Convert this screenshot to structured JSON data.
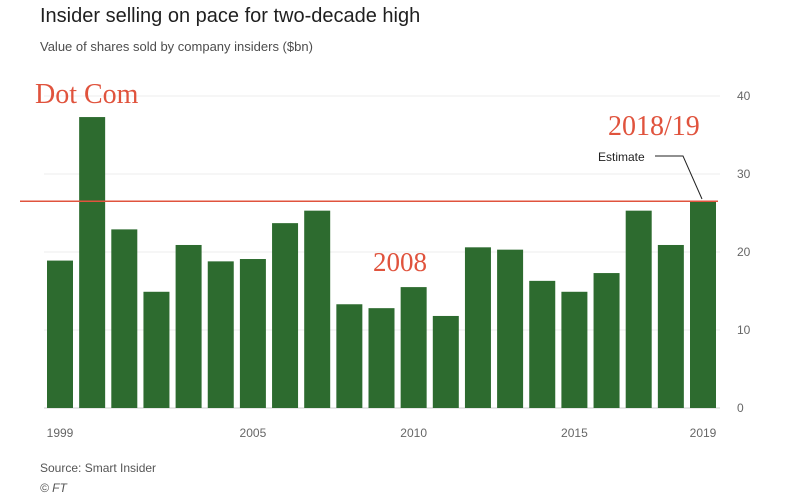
{
  "colors": {
    "bar": "#2d6b2f",
    "annotation": "#e0533d",
    "reference_line": "#e0533d",
    "grid": "#ececec",
    "baseline": "#cfcfcf"
  },
  "chart_data": {
    "type": "bar",
    "title": "Insider selling on pace for two-decade high",
    "subtitle": "Value of shares sold by company insiders ($bn)",
    "source": "Source: Smart Insider",
    "credit": "© FT",
    "categories": [
      "1999",
      "2000",
      "2001",
      "2002",
      "2003",
      "2004",
      "2005",
      "2006",
      "2007",
      "2008",
      "2009",
      "2010",
      "2011",
      "2012",
      "2013",
      "2014",
      "2015",
      "2016",
      "2017",
      "2018",
      "2019"
    ],
    "values": [
      18.9,
      37.3,
      22.9,
      14.9,
      20.9,
      18.8,
      19.1,
      23.7,
      25.3,
      13.3,
      12.8,
      15.5,
      11.8,
      20.6,
      20.3,
      16.3,
      14.9,
      17.3,
      25.3,
      20.9,
      26.5
    ],
    "x_tick_labels": [
      "1999",
      "2005",
      "2010",
      "2015",
      "2019"
    ],
    "y_ticks": [
      "0",
      "10",
      "20",
      "30",
      "40"
    ],
    "ylim": [
      0,
      40
    ],
    "y_axis_side": "right",
    "grid": true,
    "legend": "none",
    "reference_line": 26.5,
    "annotations": {
      "dot_com": "Dot Com",
      "crisis": "2008",
      "latest": "2018/19",
      "estimate": "Estimate"
    }
  }
}
